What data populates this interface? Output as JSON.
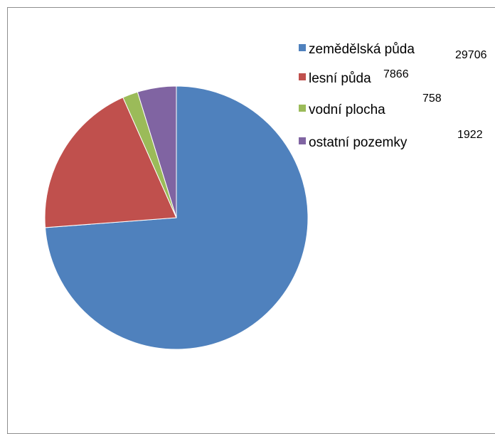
{
  "chart_data": {
    "type": "pie",
    "categories": [
      "zemědělská půda",
      "lesní půda",
      "vodní plocha",
      "ostatní pozemky"
    ],
    "values": [
      29706,
      7866,
      758,
      1922
    ],
    "value_labels": [
      "29706",
      "7866",
      "758",
      "1922"
    ],
    "colors": [
      "#4F81BD",
      "#C0504D",
      "#9BBB59",
      "#8064A2"
    ],
    "start_angle_deg": 0,
    "direction": "clockwise",
    "legend": "right"
  }
}
